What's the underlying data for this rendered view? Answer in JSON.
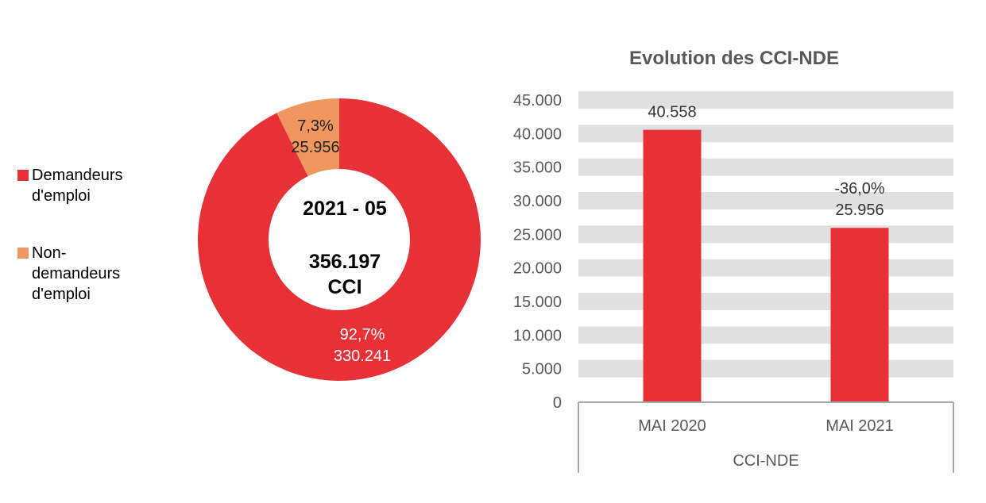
{
  "chart_data": [
    {
      "type": "pie",
      "variant": "donut",
      "center_text": [
        "2021 - 05",
        "356.197",
        "CCI"
      ],
      "legend_position": "left",
      "slices": [
        {
          "name": "Demandeurs d'emploi",
          "value": 330241,
          "value_label": "330.241",
          "percent_label": "92,7%",
          "color": "#E83137",
          "label_color": "#FFFFFF"
        },
        {
          "name": "Non-demandeurs d'emploi",
          "value": 25956,
          "value_label": "25.956",
          "percent_label": "7,3%",
          "color": "#F0975F",
          "label_color": "#222222"
        }
      ]
    },
    {
      "type": "bar",
      "title": "Evolution des CCI-NDE",
      "categories": [
        "MAI 2020",
        "MAI 2021"
      ],
      "group_label": "CCI-NDE",
      "values": [
        40558,
        25956
      ],
      "data_labels": [
        [
          "40.558"
        ],
        [
          "-36,0%",
          "25.956"
        ]
      ],
      "ylim": [
        0,
        45000
      ],
      "yticks": [
        0,
        5000,
        10000,
        15000,
        20000,
        25000,
        30000,
        35000,
        40000,
        45000
      ],
      "ytick_labels": [
        "0",
        "5.000",
        "10.000",
        "15.000",
        "20.000",
        "25.000",
        "30.000",
        "35.000",
        "40.000",
        "45.000"
      ],
      "grid": "horizontal bands",
      "bar_color": "#E83137",
      "band_color": "#E0E0E0"
    }
  ]
}
